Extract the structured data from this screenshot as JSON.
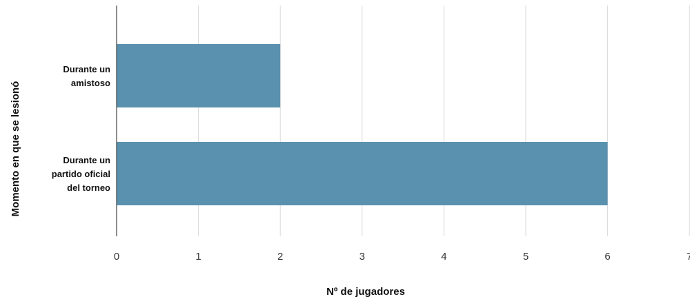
{
  "chart_data": {
    "type": "bar",
    "orientation": "horizontal",
    "categories": [
      [
        "Durante un",
        "amistoso"
      ],
      [
        "Durante un",
        "partido oficial",
        "del torneo"
      ]
    ],
    "values": [
      2,
      6
    ],
    "xlabel": "Nº de jugadores",
    "ylabel": "Momento en que se lesionó",
    "xlim": [
      0,
      7
    ],
    "xticks": [
      "0",
      "1",
      "2",
      "3",
      "4",
      "5",
      "6",
      "7"
    ],
    "grid": "vertical",
    "legend": "none",
    "bar_color": "#5a91ae"
  }
}
